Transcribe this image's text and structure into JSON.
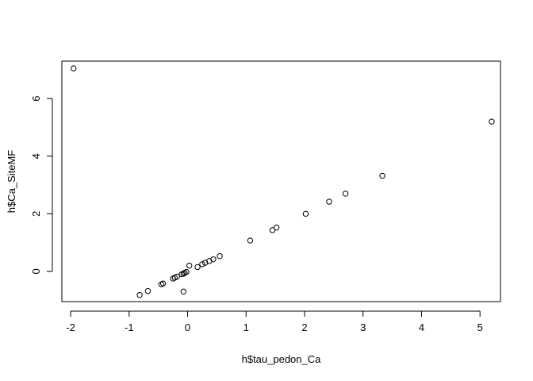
{
  "chart_data": {
    "type": "scatter",
    "title": "",
    "xlabel": "h$tau_pedon_Ca",
    "ylabel": "h$Ca_SiteMF",
    "xlim": [
      -2.15,
      5.35
    ],
    "ylim": [
      -1.05,
      7.3
    ],
    "x_ticks": [
      -2,
      -1,
      0,
      1,
      2,
      3,
      4,
      5
    ],
    "y_ticks": [
      0,
      2,
      4,
      6
    ],
    "grid": false,
    "legend": "none",
    "marker": "open-circle",
    "points": [
      {
        "x": -1.95,
        "y": 7.05
      },
      {
        "x": 5.2,
        "y": 5.2
      },
      {
        "x": 3.33,
        "y": 3.32
      },
      {
        "x": 2.7,
        "y": 2.7
      },
      {
        "x": 2.42,
        "y": 2.42
      },
      {
        "x": 2.02,
        "y": 2.0
      },
      {
        "x": 1.52,
        "y": 1.52
      },
      {
        "x": 1.45,
        "y": 1.43
      },
      {
        "x": 1.07,
        "y": 1.07
      },
      {
        "x": 0.55,
        "y": 0.53
      },
      {
        "x": 0.44,
        "y": 0.42
      },
      {
        "x": 0.37,
        "y": 0.36
      },
      {
        "x": 0.3,
        "y": 0.3
      },
      {
        "x": 0.25,
        "y": 0.25
      },
      {
        "x": 0.17,
        "y": 0.15
      },
      {
        "x": 0.03,
        "y": 0.2
      },
      {
        "x": -0.02,
        "y": -0.02
      },
      {
        "x": -0.05,
        "y": -0.05
      },
      {
        "x": -0.07,
        "y": -0.08
      },
      {
        "x": -0.1,
        "y": -0.1
      },
      {
        "x": -0.18,
        "y": -0.18
      },
      {
        "x": -0.22,
        "y": -0.22
      },
      {
        "x": -0.25,
        "y": -0.25
      },
      {
        "x": -0.42,
        "y": -0.42
      },
      {
        "x": -0.45,
        "y": -0.45
      },
      {
        "x": -0.07,
        "y": -0.7
      },
      {
        "x": -0.68,
        "y": -0.68
      },
      {
        "x": -0.82,
        "y": -0.82
      }
    ]
  }
}
